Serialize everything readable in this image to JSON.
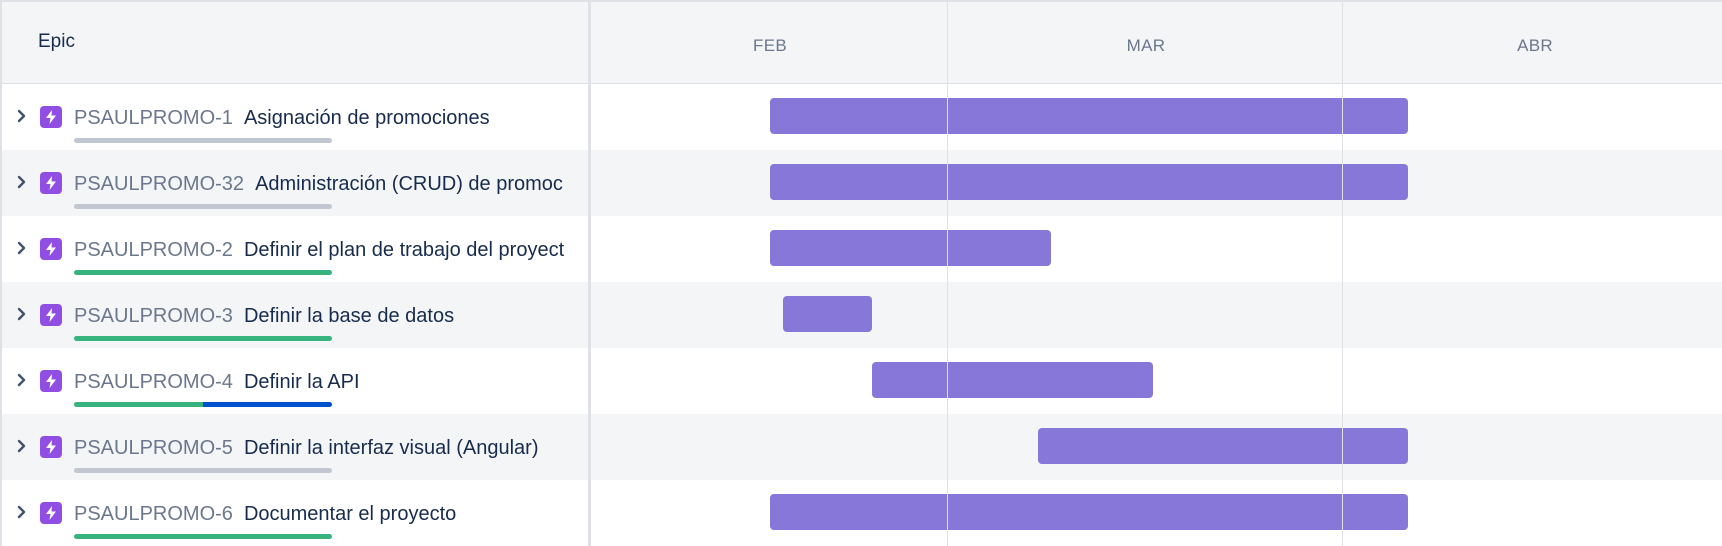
{
  "header": {
    "epic_label": "Epic",
    "months": [
      "FEB",
      "MAR",
      "ABR"
    ]
  },
  "colors": {
    "bar": "#8777d9",
    "epic_icon": "#904ee2",
    "progress_done": "#36b37e",
    "progress_in_progress": "#0052cc",
    "progress_todo": "#c1c7d0"
  },
  "icons": {
    "expand": "chevron-right-icon",
    "epic": "epic-lightning-icon"
  },
  "epics": [
    {
      "key": "PSAULPROMO-1",
      "summary": "Asignación de promociones",
      "progress": {
        "done": 0,
        "in_progress": 0
      }
    },
    {
      "key": "PSAULPROMO-32",
      "summary": "Administración (CRUD) de promoc",
      "progress": {
        "done": 0,
        "in_progress": 0
      }
    },
    {
      "key": "PSAULPROMO-2",
      "summary": "Definir el plan de trabajo del proyect",
      "progress": {
        "done": 1.0,
        "in_progress": 0
      }
    },
    {
      "key": "PSAULPROMO-3",
      "summary": "Definir la base de datos",
      "progress": {
        "done": 1.0,
        "in_progress": 0
      }
    },
    {
      "key": "PSAULPROMO-4",
      "summary": "Definir la API",
      "progress": {
        "done": 0.5,
        "in_progress": 0.5
      }
    },
    {
      "key": "PSAULPROMO-5",
      "summary": "Definir la interfaz visual (Angular)",
      "progress": {
        "done": 0,
        "in_progress": 0
      }
    },
    {
      "key": "PSAULPROMO-6",
      "summary": "Documentar el proyecto",
      "progress": {
        "done": 1.0,
        "in_progress": 0
      }
    }
  ]
}
